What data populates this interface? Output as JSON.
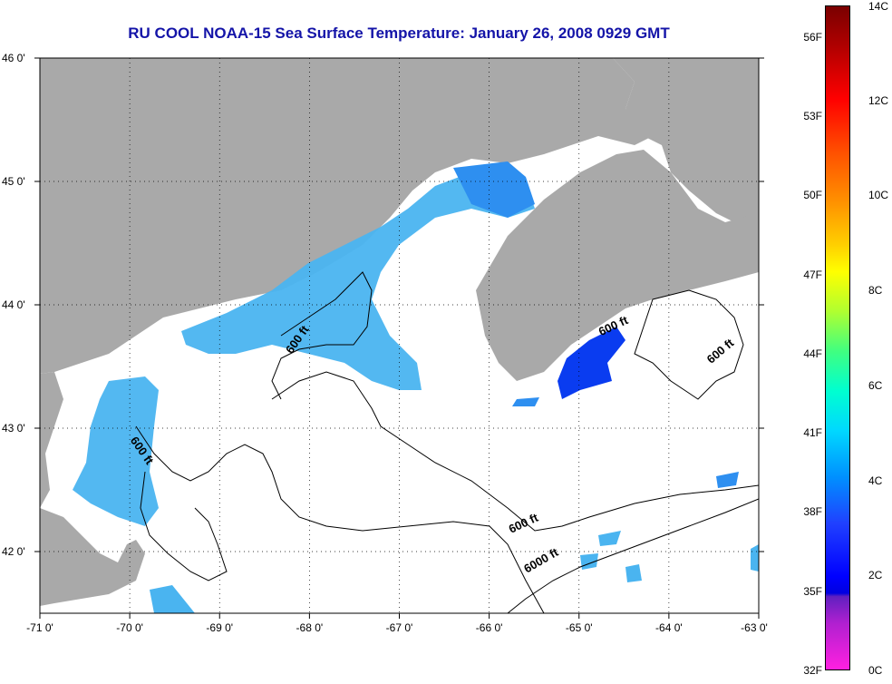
{
  "title": "RU COOL  NOAA-15  Sea Surface Temperature:  January 26, 2008 0929 GMT",
  "map": {
    "lon_range": [
      -71,
      -63
    ],
    "lat_range": [
      41.5,
      46
    ],
    "x_ticks": [
      {
        "value": -71,
        "label": "-71 0'"
      },
      {
        "value": -70,
        "label": "-70 0'"
      },
      {
        "value": -69,
        "label": "-69 0'"
      },
      {
        "value": -68,
        "label": "-68 0'"
      },
      {
        "value": -67,
        "label": "-67 0'"
      },
      {
        "value": -66,
        "label": "-66 0'"
      },
      {
        "value": -65,
        "label": "-65 0'"
      },
      {
        "value": -64,
        "label": "-64 0'"
      },
      {
        "value": -63,
        "label": "-63 0'"
      }
    ],
    "y_ticks": [
      {
        "value": 46,
        "label": "46 0'"
      },
      {
        "value": 45,
        "label": "45 0'"
      },
      {
        "value": 44,
        "label": "44 0'"
      },
      {
        "value": 43,
        "label": "43 0'"
      },
      {
        "value": 42,
        "label": "42 0'"
      }
    ],
    "contour_labels": [
      {
        "text": "600 ft",
        "lon": -68.1,
        "lat": 43.7,
        "rotate": -55
      },
      {
        "text": "600 ft",
        "lon": -69.9,
        "lat": 42.8,
        "rotate": 55
      },
      {
        "text": "600 ft",
        "lon": -64.6,
        "lat": 43.8,
        "rotate": -25
      },
      {
        "text": "600 ft",
        "lon": -63.4,
        "lat": 43.6,
        "rotate": -40
      },
      {
        "text": "600 ft",
        "lon": -65.6,
        "lat": 42.2,
        "rotate": -25
      },
      {
        "text": "6000 ft",
        "lon": -65.4,
        "lat": 41.9,
        "rotate": -30
      }
    ],
    "colors": {
      "land": "#a9a9a9",
      "water": "#ffffff",
      "sst_cool": "#4ab4f0",
      "sst_mid": "#2e8ff0",
      "sst_cold": "#0a3cf0",
      "grid": "#000000"
    }
  },
  "colorbar": {
    "range_c": [
      0,
      14
    ],
    "fahrenheit_labels": [
      {
        "value_f": 56,
        "label": "56F"
      },
      {
        "value_f": 53,
        "label": "53F"
      },
      {
        "value_f": 50,
        "label": "50F"
      },
      {
        "value_f": 47,
        "label": "47F"
      },
      {
        "value_f": 44,
        "label": "44F"
      },
      {
        "value_f": 41,
        "label": "41F"
      },
      {
        "value_f": 38,
        "label": "38F"
      },
      {
        "value_f": 35,
        "label": "35F"
      },
      {
        "value_f": 32,
        "label": "32F"
      }
    ],
    "celsius_labels": [
      {
        "value_c": 14,
        "label": "14C"
      },
      {
        "value_c": 12,
        "label": "12C"
      },
      {
        "value_c": 10,
        "label": "10C"
      },
      {
        "value_c": 8,
        "label": "8C"
      },
      {
        "value_c": 6,
        "label": "6C"
      },
      {
        "value_c": 4,
        "label": "4C"
      },
      {
        "value_c": 2,
        "label": "2C"
      },
      {
        "value_c": 0,
        "label": "0C"
      }
    ]
  }
}
